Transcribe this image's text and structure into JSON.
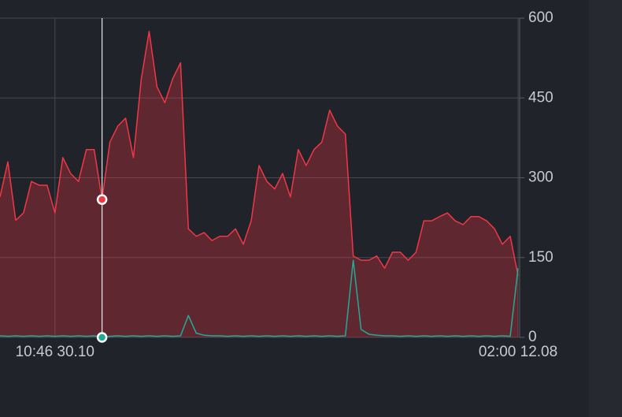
{
  "chart_data": {
    "type": "area",
    "categories": [
      null,
      null,
      null,
      null,
      null,
      null,
      null,
      "10:46 30.10",
      null,
      null,
      null,
      null,
      null,
      null,
      null,
      null,
      null,
      null,
      null,
      null,
      null,
      null,
      null,
      null,
      null,
      null,
      null,
      null,
      null,
      null,
      null,
      null,
      null,
      null,
      null,
      null,
      null,
      null,
      null,
      null,
      null,
      null,
      null,
      null,
      null,
      null,
      null,
      null,
      null,
      null,
      null,
      null,
      null,
      null,
      null,
      null,
      null,
      null,
      null,
      null,
      null,
      null,
      null,
      null,
      null,
      null,
      "02:00 12.08"
    ],
    "series": [
      {
        "color": "#f23645",
        "values": [
          264,
          330,
          220,
          234,
          293,
          286,
          286,
          234,
          338,
          308,
          293,
          353,
          353,
          259,
          367,
          397,
          412,
          338,
          486,
          575,
          471,
          441,
          486,
          516,
          204,
          190,
          197,
          182,
          190,
          190,
          204,
          175,
          219,
          323,
          293,
          279,
          308,
          264,
          353,
          323,
          353,
          367,
          427,
          397,
          382,
          153,
          145,
          145,
          153,
          130,
          160,
          160,
          145,
          160,
          219,
          219,
          227,
          234,
          219,
          212,
          227,
          227,
          219,
          204,
          175,
          190,
          116
        ]
      },
      {
        "color": "#22ab94",
        "values": [
          3,
          2,
          3,
          2,
          3,
          2,
          3,
          2,
          3,
          2,
          3,
          2,
          3,
          0,
          2,
          3,
          2,
          3,
          2,
          3,
          2,
          3,
          2,
          3,
          41,
          8,
          4,
          3,
          3,
          2,
          3,
          2,
          3,
          2,
          3,
          2,
          3,
          2,
          3,
          2,
          3,
          2,
          3,
          2,
          3,
          145,
          15,
          6,
          4,
          3,
          3,
          2,
          3,
          2,
          3,
          2,
          3,
          2,
          3,
          2,
          3,
          2,
          3,
          2,
          3,
          2,
          130
        ]
      }
    ],
    "crosshair_index": 13,
    "ylim": [
      0,
      600
    ],
    "yticks": [
      0,
      150,
      300,
      450,
      600
    ],
    "grid": true
  }
}
